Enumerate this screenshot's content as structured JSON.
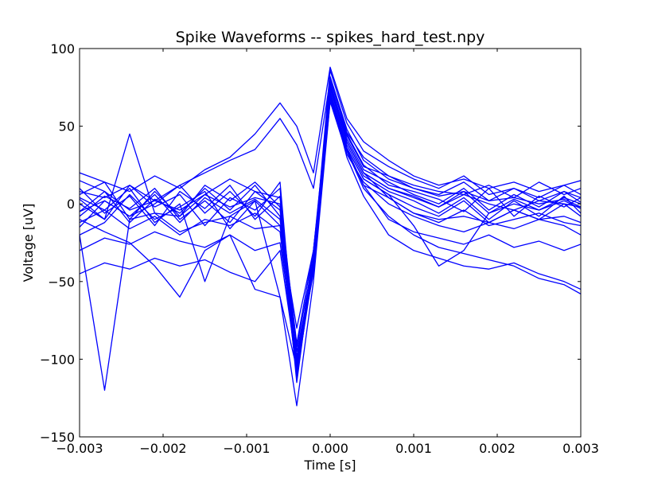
{
  "chart_data": {
    "type": "line",
    "title": "Spike Waveforms -- spikes_hard_test.npy",
    "xlabel": "Time [s]",
    "ylabel": "Voltage [uV]",
    "xlim": [
      -0.003,
      0.003
    ],
    "ylim": [
      -150,
      100
    ],
    "x_ticks": [
      -0.003,
      -0.002,
      -0.001,
      0.0,
      0.001,
      0.002,
      0.003
    ],
    "x_tick_labels": [
      "−0.003",
      "−0.002",
      "−0.001",
      "0.000",
      "0.001",
      "0.002",
      "0.003"
    ],
    "y_ticks": [
      -150,
      -100,
      -50,
      0,
      50,
      100
    ],
    "y_tick_labels": [
      "−150",
      "−100",
      "−50",
      "0",
      "50",
      "100"
    ],
    "grid": false,
    "legend": false,
    "color": "#0000ff",
    "x": [
      -0.003,
      -0.0027,
      -0.0024,
      -0.0021,
      -0.0018,
      -0.0015,
      -0.0012,
      -0.0009,
      -0.0006,
      -0.0004,
      -0.0002,
      0.0,
      0.0002,
      0.0004,
      0.0007,
      0.001,
      0.0013,
      0.0016,
      0.0019,
      0.0022,
      0.0025,
      0.0028,
      0.003
    ],
    "series": [
      {
        "values": [
          -5,
          8,
          -12,
          3,
          -6,
          10,
          -4,
          12,
          -8,
          -105,
          -40,
          75,
          40,
          20,
          10,
          5,
          -2,
          8,
          -6,
          3,
          -4,
          2,
          -3
        ]
      },
      {
        "values": [
          10,
          -6,
          5,
          -14,
          8,
          -3,
          12,
          -10,
          5,
          -110,
          -35,
          80,
          45,
          25,
          12,
          8,
          3,
          -5,
          10,
          -8,
          5,
          -2,
          4
        ]
      },
      {
        "values": [
          -15,
          2,
          -8,
          6,
          -12,
          4,
          -6,
          3,
          -10,
          -100,
          -45,
          72,
          38,
          18,
          8,
          2,
          -6,
          4,
          -10,
          2,
          -8,
          5,
          -6
        ]
      },
      {
        "values": [
          3,
          -10,
          12,
          -2,
          6,
          -14,
          4,
          -4,
          10,
          -112,
          -38,
          78,
          42,
          22,
          14,
          6,
          0,
          10,
          -4,
          6,
          -2,
          8,
          1
        ]
      },
      {
        "values": [
          -8,
          5,
          -3,
          10,
          -10,
          2,
          -12,
          8,
          -4,
          -95,
          -42,
          70,
          36,
          16,
          6,
          -2,
          -8,
          2,
          -12,
          -4,
          -10,
          0,
          -8
        ]
      },
      {
        "values": [
          15,
          8,
          -4,
          2,
          12,
          -6,
          8,
          -8,
          14,
          -108,
          -36,
          82,
          48,
          28,
          16,
          10,
          6,
          14,
          2,
          10,
          4,
          12,
          6
        ]
      },
      {
        "values": [
          -20,
          -12,
          6,
          -10,
          -2,
          8,
          -16,
          2,
          -14,
          -102,
          -40,
          74,
          40,
          20,
          4,
          -6,
          -12,
          -4,
          -14,
          -10,
          -6,
          -12,
          -14
        ]
      },
      {
        "values": [
          6,
          14,
          -10,
          8,
          -8,
          12,
          2,
          14,
          -2,
          -115,
          -34,
          76,
          44,
          24,
          18,
          12,
          8,
          6,
          12,
          4,
          14,
          6,
          10
        ]
      },
      {
        "values": [
          -30,
          -22,
          -26,
          -18,
          -24,
          -28,
          -20,
          -30,
          -25,
          -98,
          -44,
          68,
          35,
          12,
          -10,
          -18,
          -22,
          -26,
          -20,
          -28,
          -24,
          -30,
          -26
        ]
      },
      {
        "values": [
          -45,
          -38,
          -42,
          -35,
          -40,
          -36,
          -44,
          -50,
          -30,
          -104,
          -40,
          72,
          30,
          5,
          -20,
          -30,
          -35,
          -40,
          -42,
          -38,
          -45,
          -50,
          -55
        ]
      },
      {
        "values": [
          0,
          -10,
          45,
          -6,
          -8,
          6,
          -2,
          4,
          0,
          -90,
          -30,
          76,
          40,
          20,
          10,
          4,
          -2,
          6,
          0,
          -4,
          2,
          0,
          -2
        ]
      },
      {
        "values": [
          -20,
          -120,
          -10,
          -6,
          -18,
          -12,
          -8,
          -16,
          -14,
          -80,
          -30,
          68,
          35,
          12,
          4,
          -6,
          -10,
          -8,
          -12,
          -4,
          -10,
          -8,
          -12
        ]
      },
      {
        "values": [
          20,
          14,
          8,
          18,
          10,
          22,
          30,
          45,
          65,
          50,
          20,
          88,
          55,
          40,
          28,
          18,
          12,
          16,
          10,
          14,
          8,
          12,
          15
        ]
      },
      {
        "values": [
          -5,
          2,
          -8,
          0,
          12,
          20,
          28,
          35,
          55,
          38,
          10,
          80,
          46,
          30,
          18,
          10,
          5,
          8,
          2,
          4,
          0,
          3,
          -2
        ]
      },
      {
        "values": [
          -10,
          -18,
          -25,
          -40,
          -60,
          -30,
          -20,
          -55,
          -60,
          -130,
          -50,
          66,
          34,
          10,
          -8,
          -20,
          -28,
          -32,
          -36,
          -40,
          -48,
          -52,
          -58
        ]
      },
      {
        "values": [
          4,
          -4,
          10,
          -12,
          0,
          -50,
          -8,
          2,
          -60,
          -106,
          -30,
          70,
          36,
          16,
          6,
          -14,
          -40,
          -30,
          -6,
          0,
          -4,
          4,
          0
        ]
      },
      {
        "values": [
          8,
          4,
          12,
          2,
          -4,
          6,
          16,
          8,
          4,
          -92,
          -36,
          86,
          52,
          34,
          24,
          16,
          10,
          18,
          6,
          10,
          2,
          8,
          4
        ]
      },
      {
        "values": [
          -12,
          -4,
          -16,
          -8,
          -20,
          -10,
          -14,
          -6,
          -18,
          -110,
          -42,
          66,
          32,
          14,
          0,
          -8,
          -14,
          -18,
          -12,
          -16,
          -10,
          -14,
          -20
        ]
      }
    ]
  }
}
